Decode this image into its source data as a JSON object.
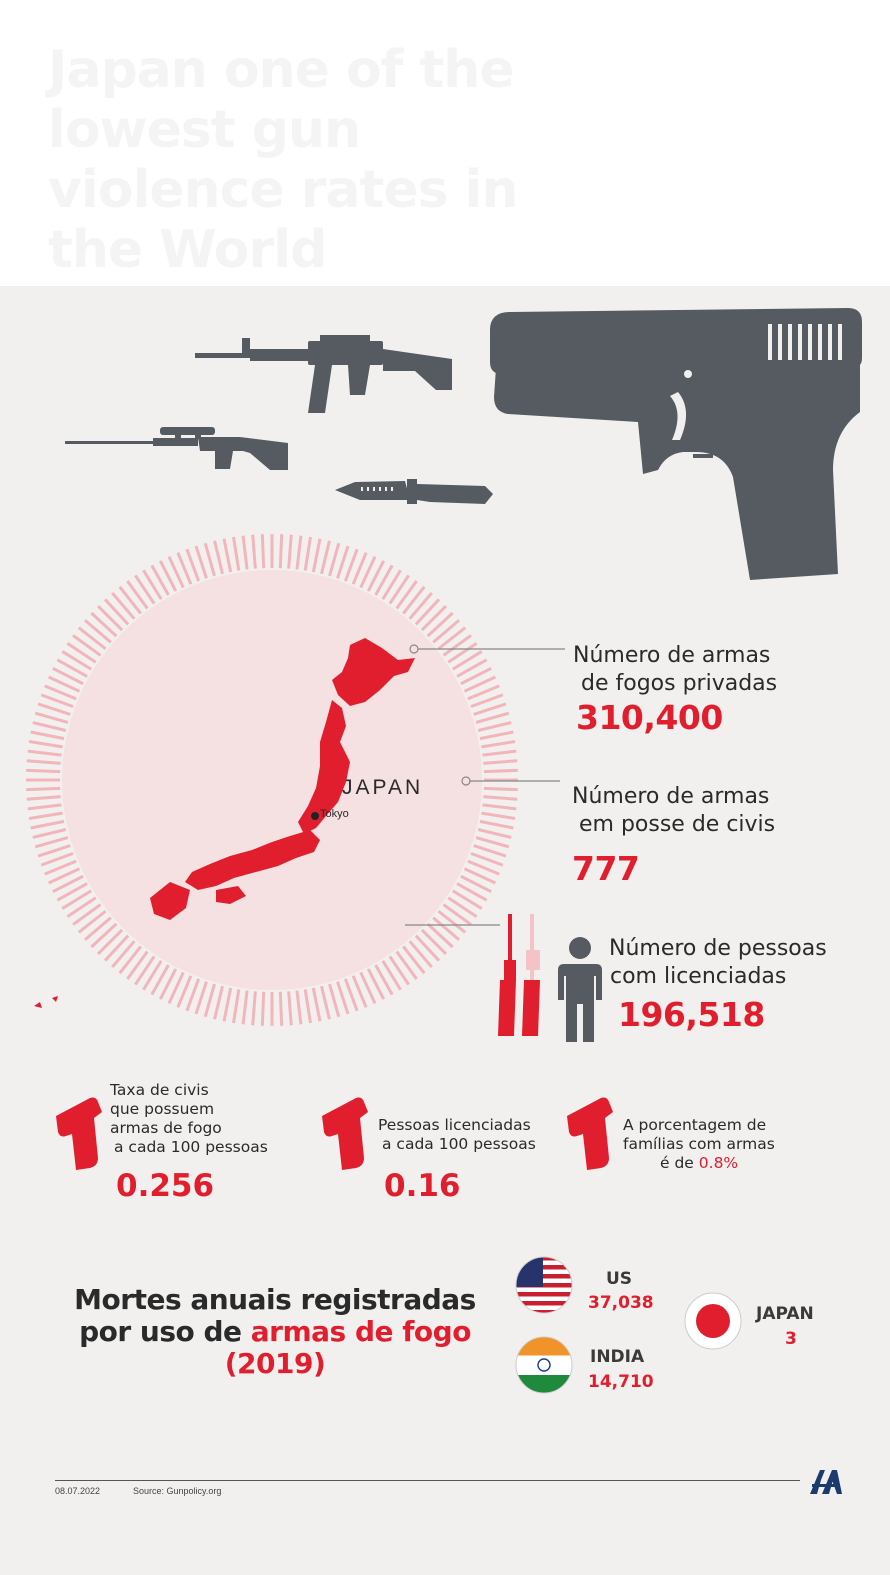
{
  "header": {
    "title": "Japan one of the lowest gun violence rates in the World"
  },
  "map": {
    "country_label": "JAPAN",
    "capital_label": "Tokyo"
  },
  "stats": [
    {
      "label_line1": "Número de armas",
      "label_line2": "de fogos privadas",
      "value": "310,400"
    },
    {
      "label_line1": "Número de armas",
      "label_line2": "em posse de civis",
      "value": "777"
    },
    {
      "label_line1": "Número de pessoas",
      "label_line2": "com licenciadas",
      "value": "196,518"
    }
  ],
  "rates": [
    {
      "lines": [
        "Taxa de civis",
        "que possuem",
        "armas de fogo",
        "a cada 100 pessoas"
      ],
      "value": "0.256"
    },
    {
      "lines": [
        "Pessoas licenciadas",
        "a cada 100 pessoas"
      ],
      "value": "0.16"
    },
    {
      "lines": [
        "A porcentagem de",
        "famílias com armas",
        "é  de"
      ],
      "highlight": "0.8%"
    }
  ],
  "deaths": {
    "title_line1": "Mortes anuais registradas",
    "title_line2_prefix": "por uso de ",
    "title_line2_highlight": "armas de fogo",
    "title_line3": "(2019)",
    "countries": [
      {
        "name": "US",
        "value": "37,038",
        "flag": "us-flag"
      },
      {
        "name": "INDIA",
        "value": "14,710",
        "flag": "india-flag"
      },
      {
        "name": "JAPAN",
        "value": "3",
        "flag": "japan-flag"
      }
    ]
  },
  "footer": {
    "date": "08.07.2022",
    "source": "Source: Gunpolicy.org",
    "logo": "aa-logo"
  },
  "colors": {
    "accent_red": "#e01e2d",
    "gun_gray": "#555b60",
    "panel_bg": "#f1f0ef"
  }
}
